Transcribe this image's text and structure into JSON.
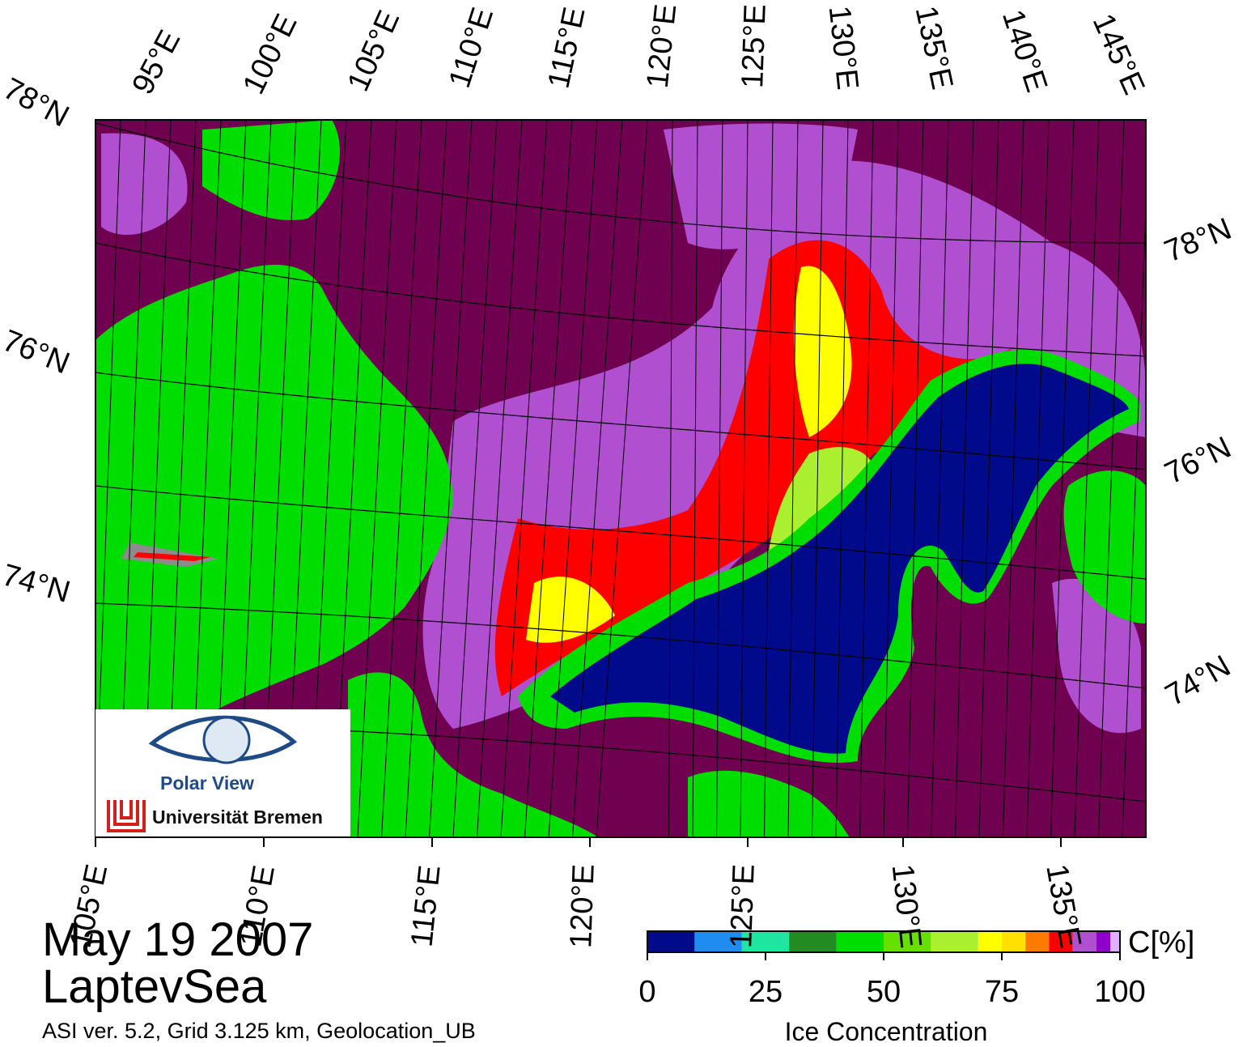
{
  "map": {
    "region_label": "LaptevSea",
    "date_label": "May 19 2007",
    "subtitle": "ASI ver. 5.2,  Grid 3.125 km, Geolocation_UB",
    "top_lon_labels": [
      "95°E",
      "100°E",
      "105°E",
      "110°E",
      "115°E",
      "120°E",
      "125°E",
      "130°E",
      "135°E",
      "140°E",
      "145°E"
    ],
    "bottom_lon_labels": [
      "105°E",
      "110°E",
      "115°E",
      "120°E",
      "125°E",
      "130°E",
      "135°E"
    ],
    "left_lat_labels": [
      "78°N",
      "76°N",
      "74°N"
    ],
    "right_lat_labels": [
      "78°N",
      "76°N",
      "74°N"
    ],
    "colors": {
      "land": "#00dd00",
      "coast_mask": "#8c8c8c",
      "high_ice": "#700050",
      "open_water": "#000a8a",
      "graticule": "#000000"
    }
  },
  "colorbar": {
    "title": "Ice Concentration",
    "unit": "C[%]",
    "tick_labels": [
      "0",
      "25",
      "50",
      "75",
      "100"
    ],
    "range": [
      0,
      100
    ],
    "bins": [
      {
        "from": 0,
        "to": 10,
        "color": "#000a8a"
      },
      {
        "from": 10,
        "to": 20,
        "color": "#1e8cf0"
      },
      {
        "from": 20,
        "to": 30,
        "color": "#1ee6a0"
      },
      {
        "from": 30,
        "to": 40,
        "color": "#228b22"
      },
      {
        "from": 40,
        "to": 50,
        "color": "#00dd00"
      },
      {
        "from": 50,
        "to": 60,
        "color": "#66e000"
      },
      {
        "from": 60,
        "to": 70,
        "color": "#aaf030"
      },
      {
        "from": 70,
        "to": 75,
        "color": "#ffff00"
      },
      {
        "from": 75,
        "to": 80,
        "color": "#ffe000"
      },
      {
        "from": 80,
        "to": 85,
        "color": "#ff7a00"
      },
      {
        "from": 85,
        "to": 90,
        "color": "#ff0000"
      },
      {
        "from": 90,
        "to": 95,
        "color": "#b050d0"
      },
      {
        "from": 95,
        "to": 98,
        "color": "#9000cc"
      },
      {
        "from": 98,
        "to": 100,
        "color": "#e0b0ff"
      }
    ]
  },
  "logo": {
    "name": "Polar View",
    "organization": "Universität Bremen"
  }
}
